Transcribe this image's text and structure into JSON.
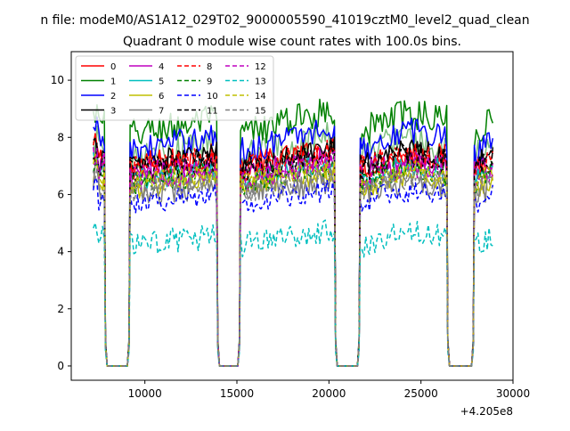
{
  "chart_data": {
    "type": "line",
    "suptitle": "n file: modeM0/AS1A12_029T02_9000005590_41019cztM0_level2_quad_clean",
    "title": "Quadrant 0 module wise count rates with 100.0s bins.",
    "xlabel": "",
    "ylabel": "",
    "x_offset_label": "+4.205e8",
    "xlim": [
      6000,
      30000
    ],
    "ylim": [
      -0.5,
      11
    ],
    "xticks": [
      10000,
      15000,
      20000,
      25000,
      30000
    ],
    "xtick_labels": [
      "10000",
      "15000",
      "20000",
      "25000",
      "30000"
    ],
    "yticks": [
      0,
      2,
      4,
      6,
      8,
      10
    ],
    "ytick_labels": [
      "0",
      "2",
      "4",
      "6",
      "8",
      "10"
    ],
    "grid": false,
    "legend_position": "top-left",
    "legend_ncol": 4,
    "segments": [
      {
        "start": 7200,
        "end": 7800
      },
      {
        "start": 9200,
        "end": 13900
      },
      {
        "start": 15200,
        "end": 20300
      },
      {
        "start": 21700,
        "end": 26400
      },
      {
        "start": 27900,
        "end": 28900
      }
    ],
    "series": [
      {
        "name": "0",
        "color": "#ff0000",
        "dash": "solid",
        "level": 7.0,
        "noise": 0.5,
        "trend": 0.5
      },
      {
        "name": "1",
        "color": "#008000",
        "dash": "solid",
        "level": 8.1,
        "noise": 0.55,
        "trend": 0.9
      },
      {
        "name": "2",
        "color": "#0000ff",
        "dash": "solid",
        "level": 7.5,
        "noise": 0.5,
        "trend": 0.9
      },
      {
        "name": "3",
        "color": "#000000",
        "dash": "solid",
        "level": 7.0,
        "noise": 0.45,
        "trend": 0.7
      },
      {
        "name": "4",
        "color": "#bf00bf",
        "dash": "solid",
        "level": 6.7,
        "noise": 0.45,
        "trend": 0.6
      },
      {
        "name": "5",
        "color": "#00bfbf",
        "dash": "solid",
        "level": 6.5,
        "noise": 0.4,
        "trend": 0.6
      },
      {
        "name": "6",
        "color": "#bfbf00",
        "dash": "solid",
        "level": 6.2,
        "noise": 0.4,
        "trend": 0.6
      },
      {
        "name": "7",
        "color": "#808080",
        "dash": "solid",
        "level": 6.0,
        "noise": 0.45,
        "trend": 0.5
      },
      {
        "name": "8",
        "color": "#ff0000",
        "dash": "dashed",
        "level": 6.9,
        "noise": 0.45,
        "trend": 0.6
      },
      {
        "name": "9",
        "color": "#008000",
        "dash": "dashed",
        "level": 6.4,
        "noise": 0.45,
        "trend": 0.6
      },
      {
        "name": "10",
        "color": "#0000ff",
        "dash": "dashed",
        "level": 5.7,
        "noise": 0.4,
        "trend": 0.5
      },
      {
        "name": "11",
        "color": "#000000",
        "dash": "dashed",
        "level": 6.8,
        "noise": 0.45,
        "trend": 0.7
      },
      {
        "name": "12",
        "color": "#bf00bf",
        "dash": "dashed",
        "level": 6.5,
        "noise": 0.4,
        "trend": 0.6
      },
      {
        "name": "13",
        "color": "#00bfbf",
        "dash": "dashed",
        "level": 4.2,
        "noise": 0.45,
        "trend": 0.6
      },
      {
        "name": "14",
        "color": "#bfbf00",
        "dash": "dashed",
        "level": 6.4,
        "noise": 0.4,
        "trend": 0.6
      },
      {
        "name": "15",
        "color": "#808080",
        "dash": "dashed",
        "level": 6.1,
        "noise": 0.4,
        "trend": 0.6
      }
    ],
    "extra_series": {
      "name": "",
      "color": "#7fbf7f",
      "dash": "solid",
      "level": 7.3,
      "noise": 0.55,
      "trend": 0.8
    }
  }
}
